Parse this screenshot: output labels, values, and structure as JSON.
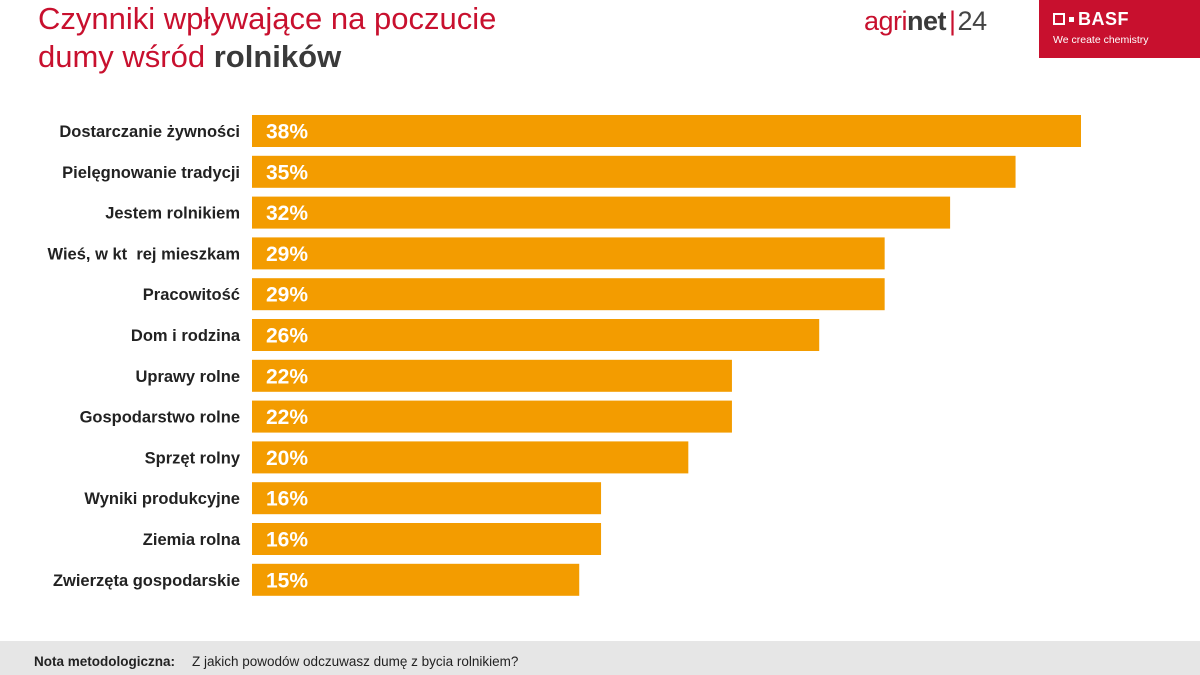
{
  "header": {
    "title_line1": "Czynniki wpływające na poczucie",
    "title_line2_regular": "dumy wśród ",
    "title_line2_bold": "rolników"
  },
  "agrinet": {
    "part1": "agri",
    "part2": "net",
    "separator": "|",
    "part3": "24"
  },
  "basf": {
    "brand": "BASF",
    "tagline": "We create chemistry",
    "color": "#c8102e"
  },
  "colors": {
    "bar": "#f39c00",
    "accent": "#c8102e"
  },
  "footer": {
    "label": "Nota metodologiczna:",
    "text": "Z jakich powodów odczuwasz dumę z bycia rolnikiem?"
  },
  "chart_data": {
    "type": "bar",
    "orientation": "horizontal",
    "categories": [
      "Dostarczanie żywności",
      "Pielęgnowanie tradycji",
      "Jestem rolnikiem",
      "Wieś, w kt  rej mieszkam",
      "Pracowitość",
      "Dom i rodzina",
      "Uprawy rolne",
      "Gospodarstwo rolne",
      "Sprzęt rolny",
      "Wyniki produkcyjne",
      "Ziemia rolna",
      "Zwierzęta gospodarskie"
    ],
    "values": [
      38,
      35,
      32,
      29,
      29,
      26,
      22,
      22,
      20,
      16,
      16,
      15
    ],
    "value_labels": [
      "38%",
      "35%",
      "32%",
      "29%",
      "29%",
      "26%",
      "22%",
      "22%",
      "20%",
      "16%",
      "16%",
      "15%"
    ],
    "unit": "%",
    "xlim": [
      0,
      38
    ],
    "grid": false,
    "legend": "none"
  }
}
